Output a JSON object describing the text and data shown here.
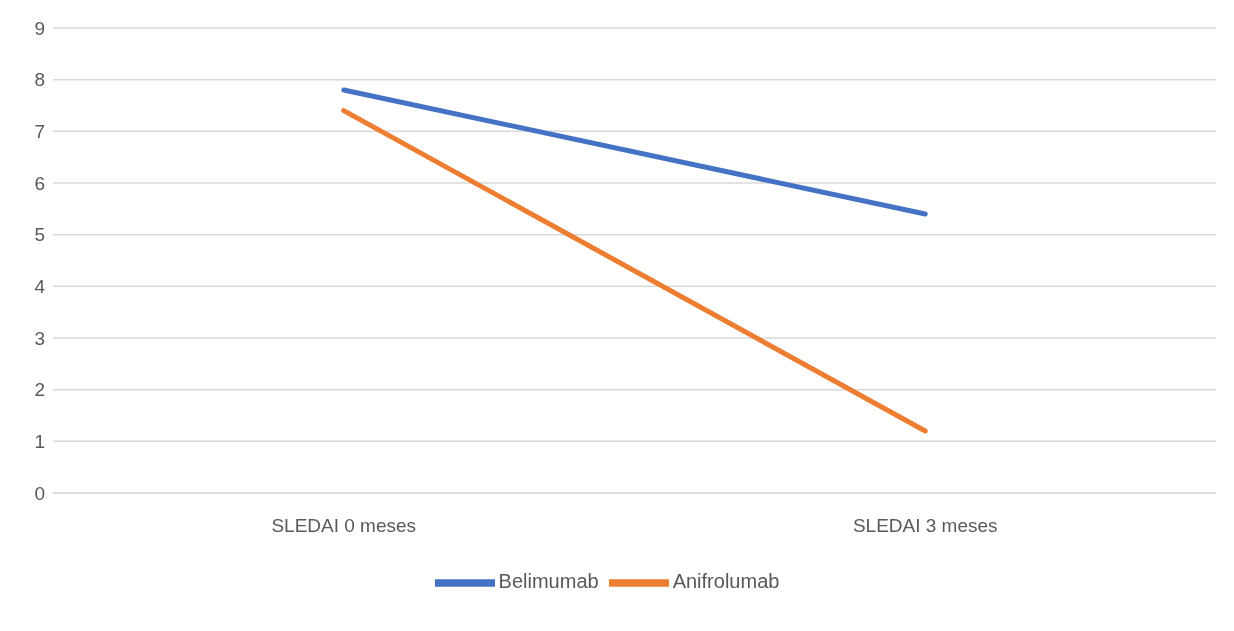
{
  "chart_data": {
    "type": "line",
    "categories": [
      "SLEDAI 0 meses",
      "SLEDAI 3 meses"
    ],
    "series": [
      {
        "name": "Belimumab",
        "color": "#4472c4",
        "values": [
          7.8,
          5.4
        ]
      },
      {
        "name": "Anifrolumab",
        "color": "#ed7d31",
        "values": [
          7.4,
          1.2
        ]
      }
    ],
    "ylim": [
      0,
      9
    ],
    "yticks": [
      0,
      1,
      2,
      3,
      4,
      5,
      6,
      7,
      8,
      9
    ],
    "grid": "y",
    "legend": "bottom",
    "marker": "none",
    "line_style": "solid"
  }
}
